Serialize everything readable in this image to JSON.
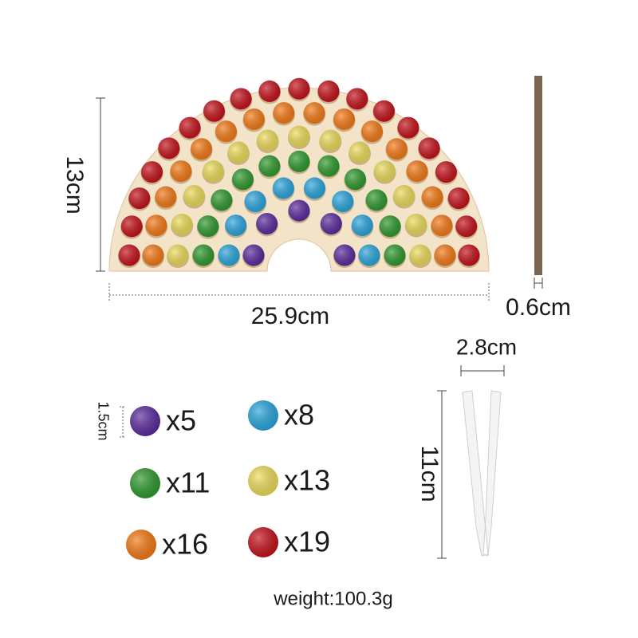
{
  "dimensions": {
    "board_height": "13cm",
    "board_width": "25.9cm",
    "rod_thickness": "0.6cm",
    "tweezer_width": "2.8cm",
    "tweezer_length": "11cm",
    "ball_diameter": "1.5cm"
  },
  "balls": [
    {
      "count": "x5",
      "color": "#5b2a9e"
    },
    {
      "count": "x8",
      "color": "#2aa6de"
    },
    {
      "count": "x11",
      "color": "#2e9a2e"
    },
    {
      "count": "x13",
      "color": "#eedd5a"
    },
    {
      "count": "x16",
      "color": "#f57a16"
    },
    {
      "count": "x19",
      "color": "#c5121a"
    }
  ],
  "weight": "weight:100.3g"
}
